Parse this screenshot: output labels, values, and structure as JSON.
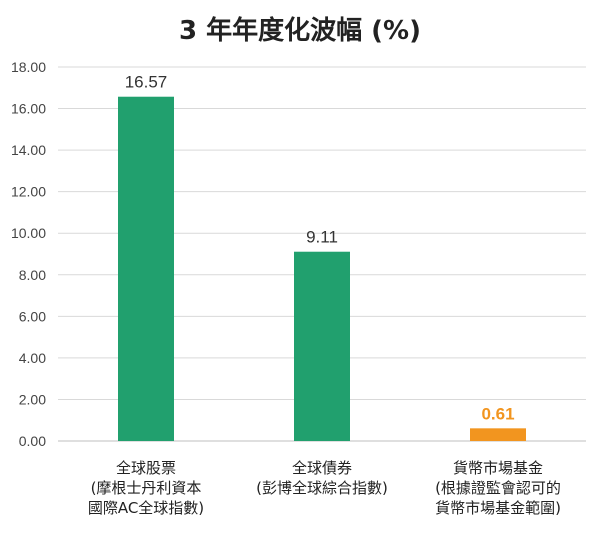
{
  "chart_data": {
    "type": "bar",
    "title": "3 年年度化波幅 (%)",
    "xlabel": "",
    "ylabel": "",
    "ylim": [
      0,
      18
    ],
    "y_ticks": [
      "0.00",
      "2.00",
      "4.00",
      "6.00",
      "8.00",
      "10.00",
      "12.00",
      "14.00",
      "16.00",
      "18.00"
    ],
    "grid": true,
    "categories": [
      [
        "全球股票",
        "(摩根士丹利資本",
        "國際AC全球指數)"
      ],
      [
        "全球債券",
        "(彭博全球綜合指數)"
      ],
      [
        "貨幣市場基金",
        "(根據證監會認可的",
        "貨幣市場基金範圍)"
      ]
    ],
    "values": [
      16.57,
      9.11,
      0.61
    ],
    "data_labels": [
      "16.57",
      "9.11",
      "0.61"
    ],
    "bar_colors": [
      "#21a06e",
      "#21a06e",
      "#f2951f"
    ],
    "label_colors": [
      "#333333",
      "#333333",
      "#f2951f"
    ],
    "gridline_color": "#d9d9d9",
    "axis_color": "#bfbfbf"
  }
}
